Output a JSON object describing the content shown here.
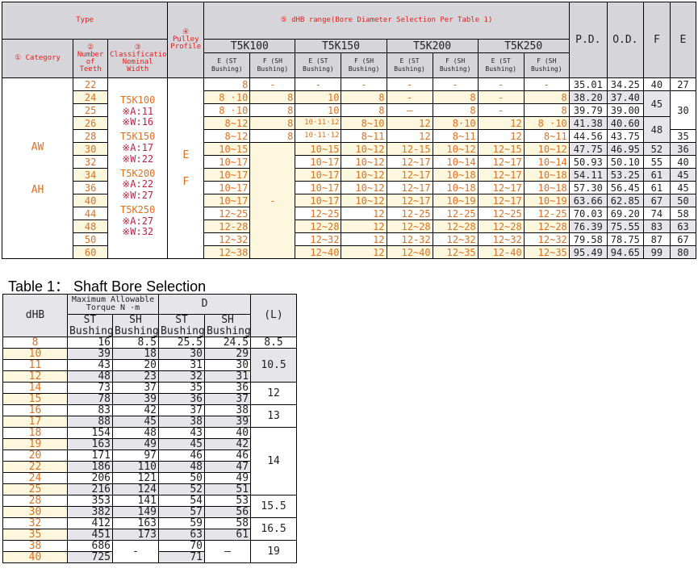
{
  "top_table": {
    "header": {
      "type": "Type",
      "category": "① Category",
      "teeth": "② Number of Teeth",
      "classification": "③ Classification Nominal Width",
      "pulley": "④ Pulley Profile",
      "range": "⑤ dHB range(Bore Diameter Selection Per Table 1)",
      "groups": [
        "T5K100",
        "T5K150",
        "T5K200",
        "T5K250"
      ],
      "sub_e": "E (ST Bushing)",
      "sub_f": "F (SH Bushing)",
      "pd": "P.D.",
      "od": "O.D.",
      "f": "F",
      "e": "E"
    },
    "categories": [
      "AW",
      "AH"
    ],
    "classification": [
      {
        "name": "T5K100",
        "a": "※A:11",
        "w": "※W:16"
      },
      {
        "name": "T5K150",
        "a": "※A:17",
        "w": "※W:22"
      },
      {
        "name": "T5K200",
        "a": "※A:22",
        "w": "※W:27"
      },
      {
        "name": "T5K250",
        "a": "※A:27",
        "w": "※W:32"
      }
    ],
    "pulley_profiles": [
      "E",
      "F"
    ],
    "merged_t5k100_f": "-",
    "rows": [
      {
        "teeth": "22",
        "cells": [
          "8",
          "-",
          "-",
          "-",
          "-",
          "-",
          "-",
          "-"
        ],
        "pd": "35.01",
        "od": "34.25"
      },
      {
        "teeth": "24",
        "cells": [
          "8 ·10",
          "8",
          "10",
          "8",
          "-",
          "8",
          "-",
          "8"
        ],
        "pd": "38.20",
        "od": "37.40"
      },
      {
        "teeth": "25",
        "cells": [
          "8 ·10",
          "8",
          "10",
          "8",
          "–",
          "8",
          "-",
          "8"
        ],
        "pd": "39.79",
        "od": "39.00"
      },
      {
        "teeth": "26",
        "cells": [
          "8~12",
          "8",
          "10·11·12",
          "8~10",
          "12",
          "8·10",
          "12",
          "8 ·10"
        ],
        "pd": "41.38",
        "od": "40.60"
      },
      {
        "teeth": "28",
        "cells": [
          "8~12",
          "8",
          "10·11·12",
          "8~11",
          "12",
          "8~11",
          "12",
          "8~11"
        ],
        "pd": "44.56",
        "od": "43.75"
      },
      {
        "teeth": "30",
        "cells": [
          "10~15",
          null,
          "10~15",
          "10~12",
          "12-15",
          "10~12",
          "12~15",
          "10~12"
        ],
        "pd": "47.75",
        "od": "46.95"
      },
      {
        "teeth": "32",
        "cells": [
          "10~17",
          null,
          "10~17",
          "10~12",
          "12~17",
          "10~14",
          "12~17",
          "10~14"
        ],
        "pd": "50.93",
        "od": "50.10"
      },
      {
        "teeth": "34",
        "cells": [
          "10~17",
          null,
          "10~17",
          "10~12",
          "12~17",
          "10~18",
          "12~17",
          "10~18"
        ],
        "pd": "54.11",
        "od": "53.25"
      },
      {
        "teeth": "36",
        "cells": [
          "10~17",
          null,
          "10~17",
          "10~12",
          "12~17",
          "10~18",
          "12~17",
          "10~18"
        ],
        "pd": "57.30",
        "od": "56.45"
      },
      {
        "teeth": "40",
        "cells": [
          "10~17",
          null,
          "10~17",
          "10~12",
          "12~17",
          "10~19",
          "12~17",
          "10~19"
        ],
        "pd": "63.66",
        "od": "62.85"
      },
      {
        "teeth": "44",
        "cells": [
          "12~25",
          null,
          "12~25",
          "12",
          "12-25",
          "12-25",
          "12~25",
          "12-25"
        ],
        "pd": "70.03",
        "od": "69.20"
      },
      {
        "teeth": "48",
        "cells": [
          "12-28",
          null,
          "12~28",
          "12",
          "12~28",
          "12~28",
          "12~28",
          "12~28"
        ],
        "pd": "76.39",
        "od": "75.55"
      },
      {
        "teeth": "50",
        "cells": [
          "12~32",
          null,
          "12~32",
          "12",
          "12-32",
          "12~32",
          "12~32",
          "12~32"
        ],
        "pd": "79.58",
        "od": "78.75"
      },
      {
        "teeth": "60",
        "cells": [
          "12~38",
          null,
          "12~40",
          "12",
          "12~40",
          "12~35",
          "12-40",
          "12~35"
        ],
        "pd": "95.49",
        "od": "94.65"
      }
    ],
    "f_values": [
      {
        "v": "40",
        "span": 1
      },
      {
        "v": "45",
        "span": 2
      },
      {
        "v": "48",
        "span": 2
      },
      {
        "v": "52",
        "span": 1
      },
      {
        "v": "55",
        "span": 1
      },
      {
        "v": "61",
        "span": 1
      },
      {
        "v": "61",
        "span": 1
      },
      {
        "v": "67",
        "span": 1
      },
      {
        "v": "74",
        "span": 1
      },
      {
        "v": "83",
        "span": 1
      },
      {
        "v": "87",
        "span": 1
      },
      {
        "v": "99",
        "span": 1
      }
    ],
    "e_values": [
      {
        "v": "27",
        "span": 1
      },
      {
        "v": "30",
        "span": 3
      },
      {
        "v": "35",
        "span": 1
      },
      {
        "v": "36",
        "span": 1
      },
      {
        "v": "40",
        "span": 1
      },
      {
        "v": "45",
        "span": 1
      },
      {
        "v": "45",
        "span": 1
      },
      {
        "v": "50",
        "span": 1
      },
      {
        "v": "58",
        "span": 1
      },
      {
        "v": "63",
        "span": 1
      },
      {
        "v": "67",
        "span": 1
      },
      {
        "v": "80",
        "span": 1
      }
    ]
  },
  "table1": {
    "title": "Table 1： Shaft Bore Selection",
    "header": {
      "dhb": "dHB",
      "torque": "Maximum Allowable Torque N ·m",
      "d": "D",
      "l": "(L)",
      "st": "ST Bushing",
      "sh": "SH Bushing"
    },
    "rows": [
      {
        "dhb": "8",
        "st_t": "16",
        "sh_t": "8.5",
        "st_d": "25.5",
        "sh_d": "24.5"
      },
      {
        "dhb": "10",
        "st_t": "39",
        "sh_t": "18",
        "st_d": "30",
        "sh_d": "29"
      },
      {
        "dhb": "11",
        "st_t": "43",
        "sh_t": "20",
        "st_d": "31",
        "sh_d": "30"
      },
      {
        "dhb": "12",
        "st_t": "48",
        "sh_t": "23",
        "st_d": "32",
        "sh_d": "31"
      },
      {
        "dhb": "14",
        "st_t": "73",
        "sh_t": "37",
        "st_d": "35",
        "sh_d": "36"
      },
      {
        "dhb": "15",
        "st_t": "78",
        "sh_t": "39",
        "st_d": "36",
        "sh_d": "37"
      },
      {
        "dhb": "16",
        "st_t": "83",
        "sh_t": "42",
        "st_d": "37",
        "sh_d": "38"
      },
      {
        "dhb": "17",
        "st_t": "88",
        "sh_t": "45",
        "st_d": "38",
        "sh_d": "39"
      },
      {
        "dhb": "18",
        "st_t": "154",
        "sh_t": "48",
        "st_d": "43",
        "sh_d": "40"
      },
      {
        "dhb": "19",
        "st_t": "163",
        "sh_t": "49",
        "st_d": "45",
        "sh_d": "42"
      },
      {
        "dhb": "20",
        "st_t": "171",
        "sh_t": "97",
        "st_d": "46",
        "sh_d": "46"
      },
      {
        "dhb": "22",
        "st_t": "186",
        "sh_t": "110",
        "st_d": "48",
        "sh_d": "47"
      },
      {
        "dhb": "24",
        "st_t": "206",
        "sh_t": "121",
        "st_d": "50",
        "sh_d": "49"
      },
      {
        "dhb": "25",
        "st_t": "216",
        "sh_t": "124",
        "st_d": "52",
        "sh_d": "51"
      },
      {
        "dhb": "28",
        "st_t": "353",
        "sh_t": "141",
        "st_d": "54",
        "sh_d": "53"
      },
      {
        "dhb": "30",
        "st_t": "382",
        "sh_t": "149",
        "st_d": "57",
        "sh_d": "56"
      },
      {
        "dhb": "32",
        "st_t": "412",
        "sh_t": "163",
        "st_d": "59",
        "sh_d": "58"
      },
      {
        "dhb": "35",
        "st_t": "451",
        "sh_t": "173",
        "st_d": "63",
        "sh_d": "61"
      },
      {
        "dhb": "38",
        "st_t": "686",
        "sh_t": null,
        "st_d": "70",
        "sh_d": null
      },
      {
        "dhb": "40",
        "st_t": "725",
        "sh_t": null,
        "st_d": "71",
        "sh_d": null
      }
    ],
    "merged_sh_torque": "-",
    "merged_sh_d": "–",
    "l_values": [
      {
        "v": "8.5",
        "span": 1
      },
      {
        "v": "10.5",
        "span": 3
      },
      {
        "v": "12",
        "span": 2
      },
      {
        "v": "13",
        "span": 2
      },
      {
        "v": "14",
        "span": 6
      },
      {
        "v": "15.5",
        "span": 2
      },
      {
        "v": "16.5",
        "span": 2
      },
      {
        "v": "19",
        "span": 2
      }
    ]
  },
  "colors": {
    "accent_orange": "#e07020",
    "header_red": "#e02020",
    "cream": "#fdf7de",
    "grey": "#e6e6ea",
    "header_grey": "#d6d6da"
  }
}
